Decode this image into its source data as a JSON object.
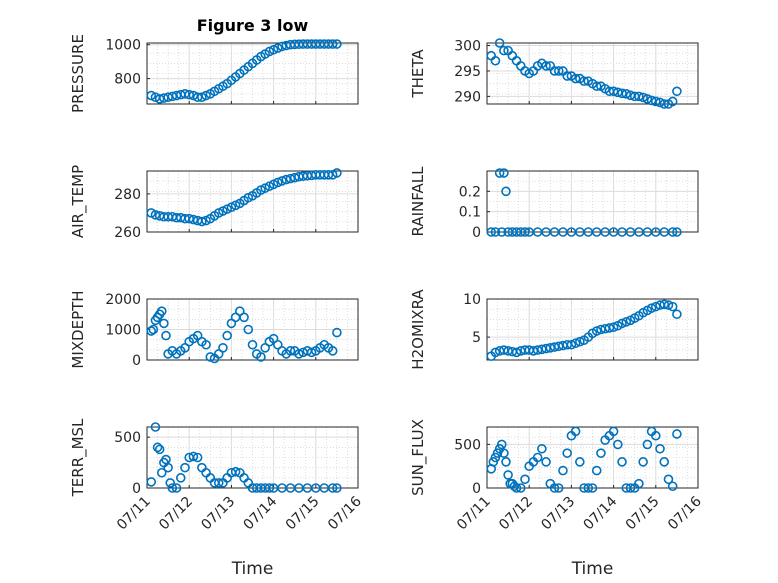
{
  "colors": {
    "marker": "#0072BD",
    "axis": "#262626",
    "grid": "#dcdcdc",
    "minor_grid": "#c8c8c8"
  },
  "chart_data": [
    {
      "id": "pressure",
      "type": "scatter",
      "title": "Figure 3 low",
      "ylabel": "PRESSURE",
      "xlabel": "",
      "ylim": [
        650,
        1010
      ],
      "yticks": [
        "800",
        "1000"
      ],
      "ytick_values": [
        800,
        1000
      ],
      "xlim": [
        0,
        5
      ],
      "xticks_shown": false,
      "grid": true,
      "x": [
        0.1,
        0.2,
        0.3,
        0.4,
        0.5,
        0.6,
        0.7,
        0.8,
        0.9,
        1.0,
        1.1,
        1.2,
        1.3,
        1.4,
        1.5,
        1.6,
        1.7,
        1.8,
        1.9,
        2.0,
        2.1,
        2.2,
        2.3,
        2.4,
        2.5,
        2.6,
        2.7,
        2.8,
        2.9,
        3.0,
        3.1,
        3.2,
        3.3,
        3.4,
        3.5,
        3.6,
        3.7,
        3.8,
        3.9,
        4.0,
        4.1,
        4.2,
        4.3,
        4.4,
        4.5
      ],
      "y": [
        700,
        690,
        680,
        685,
        690,
        695,
        700,
        705,
        710,
        705,
        700,
        690,
        690,
        700,
        710,
        725,
        740,
        755,
        770,
        790,
        810,
        830,
        850,
        870,
        890,
        910,
        930,
        945,
        960,
        970,
        980,
        990,
        995,
        1000,
        1002,
        1003,
        1004,
        1004,
        1004,
        1004,
        1004,
        1004,
        1004,
        1004,
        1004
      ]
    },
    {
      "id": "theta",
      "type": "scatter",
      "title": "",
      "ylabel": "THETA",
      "xlabel": "",
      "ylim": [
        288.5,
        300.5
      ],
      "yticks": [
        "290",
        "295",
        "300"
      ],
      "ytick_values": [
        290,
        295,
        300
      ],
      "xlim": [
        0,
        5
      ],
      "xticks_shown": false,
      "grid": true,
      "x": [
        0.1,
        0.2,
        0.3,
        0.4,
        0.5,
        0.6,
        0.7,
        0.8,
        0.9,
        1.0,
        1.1,
        1.2,
        1.3,
        1.4,
        1.5,
        1.6,
        1.7,
        1.8,
        1.9,
        2.0,
        2.1,
        2.2,
        2.3,
        2.4,
        2.5,
        2.6,
        2.7,
        2.8,
        2.9,
        3.0,
        3.1,
        3.2,
        3.3,
        3.4,
        3.5,
        3.6,
        3.7,
        3.8,
        3.9,
        4.0,
        4.1,
        4.2,
        4.3,
        4.4,
        4.5
      ],
      "y": [
        298,
        297,
        300.5,
        299,
        299,
        298,
        297,
        296,
        295,
        294.5,
        295,
        296,
        296.5,
        296,
        296,
        295,
        295,
        295,
        294,
        294,
        293.5,
        293.5,
        293,
        293,
        292.5,
        292,
        292,
        291.5,
        291,
        291,
        290.8,
        290.6,
        290.5,
        290.2,
        290,
        290,
        289.8,
        289.5,
        289.2,
        289,
        288.8,
        288.5,
        288.5,
        289,
        291
      ]
    },
    {
      "id": "air_temp",
      "type": "scatter",
      "title": "",
      "ylabel": "AIR_TEMP",
      "xlabel": "",
      "ylim": [
        260,
        292
      ],
      "yticks": [
        "260",
        "280"
      ],
      "ytick_values": [
        260,
        280
      ],
      "xlim": [
        0,
        5
      ],
      "xticks_shown": false,
      "grid": true,
      "x": [
        0.1,
        0.2,
        0.3,
        0.4,
        0.5,
        0.6,
        0.7,
        0.8,
        0.9,
        1.0,
        1.1,
        1.2,
        1.3,
        1.4,
        1.5,
        1.6,
        1.7,
        1.8,
        1.9,
        2.0,
        2.1,
        2.2,
        2.3,
        2.4,
        2.5,
        2.6,
        2.7,
        2.8,
        2.9,
        3.0,
        3.1,
        3.2,
        3.3,
        3.4,
        3.5,
        3.6,
        3.7,
        3.8,
        3.9,
        4.0,
        4.1,
        4.2,
        4.3,
        4.4,
        4.5
      ],
      "y": [
        270,
        269,
        268.5,
        268,
        268,
        268,
        267.5,
        267.5,
        267,
        267,
        266.5,
        266,
        265.5,
        266,
        267,
        268.5,
        270,
        271,
        272,
        273,
        274,
        275,
        276.5,
        278,
        279,
        280.5,
        282,
        283,
        284,
        285,
        286,
        286.8,
        287.5,
        288,
        288.5,
        289,
        289.3,
        289.5,
        289.7,
        290,
        290,
        290,
        290,
        290,
        291
      ]
    },
    {
      "id": "rainfall",
      "type": "scatter",
      "title": "",
      "ylabel": "RAINFALL",
      "xlabel": "",
      "ylim": [
        0,
        0.3
      ],
      "yticks": [
        "0",
        "0.1",
        "0.2"
      ],
      "ytick_values": [
        0,
        0.1,
        0.2
      ],
      "xlim": [
        0,
        5
      ],
      "xticks_shown": false,
      "grid": true,
      "x": [
        0.1,
        0.2,
        0.3,
        0.35,
        0.4,
        0.45,
        0.5,
        0.6,
        0.7,
        0.8,
        0.9,
        1.0,
        1.2,
        1.4,
        1.6,
        1.8,
        2.0,
        2.2,
        2.4,
        2.6,
        2.8,
        3.0,
        3.2,
        3.4,
        3.6,
        3.8,
        4.0,
        4.2,
        4.4,
        4.5
      ],
      "y": [
        0,
        0,
        0.29,
        0,
        0.29,
        0.2,
        0,
        0,
        0,
        0,
        0,
        0,
        0,
        0,
        0,
        0,
        0,
        0,
        0,
        0,
        0,
        0,
        0,
        0,
        0,
        0,
        0,
        0,
        0,
        0
      ]
    },
    {
      "id": "mixdepth",
      "type": "scatter",
      "title": "",
      "ylabel": "MIXDEPTH",
      "xlabel": "",
      "ylim": [
        0,
        2000
      ],
      "yticks": [
        "0",
        "1000",
        "2000"
      ],
      "ytick_values": [
        0,
        1000,
        2000
      ],
      "xlim": [
        0,
        5
      ],
      "xticks_shown": false,
      "grid": true,
      "x": [
        0.1,
        0.15,
        0.2,
        0.25,
        0.3,
        0.35,
        0.4,
        0.45,
        0.5,
        0.6,
        0.7,
        0.8,
        0.9,
        1.0,
        1.1,
        1.2,
        1.3,
        1.4,
        1.5,
        1.6,
        1.7,
        1.8,
        1.9,
        2.0,
        2.1,
        2.2,
        2.3,
        2.4,
        2.5,
        2.6,
        2.7,
        2.8,
        2.9,
        3.0,
        3.1,
        3.2,
        3.3,
        3.4,
        3.5,
        3.6,
        3.7,
        3.8,
        3.9,
        4.0,
        4.1,
        4.2,
        4.3,
        4.4,
        4.5
      ],
      "y": [
        950,
        1000,
        1300,
        1400,
        1500,
        1600,
        1200,
        800,
        200,
        300,
        200,
        300,
        400,
        600,
        700,
        800,
        600,
        500,
        100,
        50,
        200,
        400,
        800,
        1200,
        1400,
        1600,
        1400,
        1000,
        500,
        200,
        100,
        400,
        600,
        700,
        500,
        300,
        200,
        300,
        300,
        200,
        250,
        300,
        250,
        300,
        400,
        500,
        400,
        300,
        900
      ]
    },
    {
      "id": "h2omixra",
      "type": "scatter",
      "title": "",
      "ylabel": "H2OMIXRA",
      "xlabel": "",
      "ylim": [
        2,
        10
      ],
      "yticks": [
        "5",
        "10"
      ],
      "ytick_values": [
        5,
        10
      ],
      "xlim": [
        0,
        5
      ],
      "xticks_shown": false,
      "grid": true,
      "x": [
        0.1,
        0.2,
        0.3,
        0.4,
        0.5,
        0.6,
        0.7,
        0.8,
        0.9,
        1.0,
        1.1,
        1.2,
        1.3,
        1.4,
        1.5,
        1.6,
        1.7,
        1.8,
        1.9,
        2.0,
        2.1,
        2.2,
        2.3,
        2.4,
        2.5,
        2.6,
        2.7,
        2.8,
        2.9,
        3.0,
        3.1,
        3.2,
        3.3,
        3.4,
        3.5,
        3.6,
        3.7,
        3.8,
        3.9,
        4.0,
        4.1,
        4.2,
        4.3,
        4.4,
        4.5
      ],
      "y": [
        2.5,
        3,
        3.2,
        3.3,
        3.2,
        3.1,
        3,
        3.2,
        3.3,
        3.3,
        3.2,
        3.3,
        3.4,
        3.5,
        3.6,
        3.7,
        3.8,
        3.9,
        4,
        4,
        4.2,
        4.4,
        4.6,
        5,
        5.5,
        5.8,
        6,
        6.1,
        6.2,
        6.3,
        6.5,
        6.8,
        7,
        7.2,
        7.5,
        7.8,
        8.2,
        8.5,
        8.8,
        9,
        9.2,
        9.3,
        9.2,
        9,
        8
      ]
    },
    {
      "id": "terr_msl",
      "type": "scatter",
      "title": "",
      "ylabel": "TERR_MSL",
      "xlabel": "Time",
      "ylim": [
        0,
        600
      ],
      "yticks": [
        "0",
        "500"
      ],
      "ytick_values": [
        0,
        500
      ],
      "xlim": [
        0,
        5
      ],
      "xticks_shown": true,
      "grid": true,
      "xticks": [
        "07/11",
        "07/12",
        "07/13",
        "07/14",
        "07/15",
        "07/16"
      ],
      "xtick_values": [
        0,
        1,
        2,
        3,
        4,
        5
      ],
      "x": [
        0.1,
        0.2,
        0.25,
        0.3,
        0.35,
        0.4,
        0.45,
        0.5,
        0.55,
        0.6,
        0.7,
        0.8,
        0.9,
        1.0,
        1.1,
        1.2,
        1.3,
        1.4,
        1.5,
        1.6,
        1.7,
        1.8,
        1.9,
        2.0,
        2.1,
        2.2,
        2.3,
        2.4,
        2.5,
        2.6,
        2.7,
        2.8,
        2.9,
        3.0,
        3.2,
        3.4,
        3.6,
        3.8,
        4.0,
        4.2,
        4.4,
        4.5
      ],
      "y": [
        60,
        600,
        400,
        380,
        150,
        250,
        280,
        200,
        50,
        0,
        0,
        100,
        200,
        300,
        310,
        300,
        200,
        150,
        100,
        50,
        50,
        50,
        100,
        150,
        160,
        150,
        100,
        50,
        0,
        0,
        0,
        0,
        0,
        0,
        0,
        0,
        0,
        0,
        0,
        0,
        0,
        0
      ]
    },
    {
      "id": "sun_flux",
      "type": "scatter",
      "title": "",
      "ylabel": "SUN_FLUX",
      "xlabel": "Time",
      "ylim": [
        0,
        700
      ],
      "yticks": [
        "0",
        "500"
      ],
      "ytick_values": [
        0,
        500
      ],
      "xlim": [
        0,
        5
      ],
      "xticks_shown": true,
      "grid": true,
      "xticks": [
        "07/11",
        "07/12",
        "07/13",
        "07/14",
        "07/15",
        "07/16"
      ],
      "xtick_values": [
        0,
        1,
        2,
        3,
        4,
        5
      ],
      "x": [
        0.1,
        0.15,
        0.2,
        0.25,
        0.3,
        0.35,
        0.4,
        0.45,
        0.5,
        0.55,
        0.6,
        0.65,
        0.7,
        0.8,
        0.9,
        1.0,
        1.1,
        1.2,
        1.3,
        1.4,
        1.5,
        1.6,
        1.7,
        1.8,
        1.9,
        2.0,
        2.1,
        2.2,
        2.3,
        2.4,
        2.5,
        2.6,
        2.7,
        2.8,
        2.9,
        3.0,
        3.1,
        3.2,
        3.3,
        3.4,
        3.5,
        3.6,
        3.7,
        3.8,
        3.9,
        4.0,
        4.1,
        4.2,
        4.3,
        4.4,
        4.5
      ],
      "y": [
        220,
        300,
        350,
        400,
        450,
        500,
        400,
        300,
        150,
        50,
        50,
        20,
        0,
        0,
        100,
        250,
        300,
        350,
        450,
        300,
        50,
        0,
        0,
        200,
        400,
        600,
        650,
        300,
        0,
        0,
        0,
        200,
        400,
        550,
        600,
        650,
        500,
        300,
        0,
        0,
        0,
        50,
        300,
        500,
        650,
        600,
        450,
        300,
        100,
        20,
        620
      ]
    }
  ]
}
